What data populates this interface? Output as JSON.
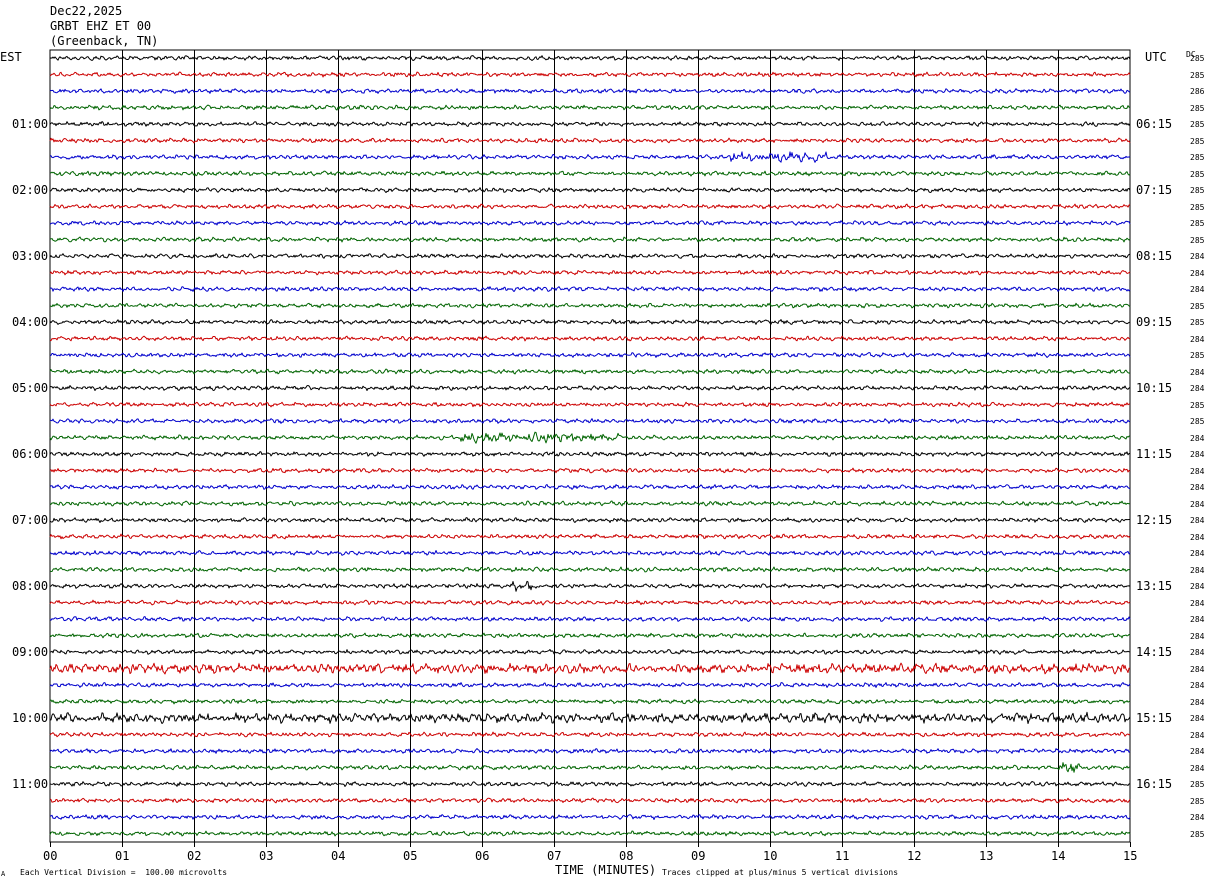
{
  "header": {
    "date": "Dec22,2025",
    "station": "GRBT EHZ ET 00",
    "location": "(Greenback, TN)"
  },
  "left_axis_title": "EST",
  "right_axis_title": "UTC",
  "dc_title": "DC",
  "footer": {
    "corner_mark": "A",
    "scale_note": "Each Vertical Division =  100.00 microvolts",
    "xlabel": "TIME (MINUTES)",
    "clip_note": "Traces clipped at plus/minus 5 vertical divisions"
  },
  "colors": {
    "trace_cycle": [
      "#000000",
      "#cc0000",
      "#0000cc",
      "#006400"
    ],
    "grid": "#000000"
  },
  "chart_data": {
    "type": "line",
    "title": "",
    "xlabel": "TIME (MINUTES)",
    "ylabel": "",
    "xlim": [
      0,
      15
    ],
    "x_ticks": [
      "00",
      "01",
      "02",
      "03",
      "04",
      "05",
      "06",
      "07",
      "08",
      "09",
      "10",
      "11",
      "12",
      "13",
      "14",
      "15"
    ],
    "trace_count": 48,
    "est_hour_labels": [
      "01:00",
      "02:00",
      "03:00",
      "04:00",
      "05:00",
      "06:00",
      "07:00",
      "08:00",
      "09:00",
      "10:00",
      "11:00"
    ],
    "utc_hour_labels": [
      "06:15",
      "07:15",
      "08:15",
      "09:15",
      "10:15",
      "11:15",
      "12:15",
      "13:15",
      "14:15",
      "15:15",
      "16:15"
    ],
    "dc_offsets": [
      285,
      285,
      286,
      285,
      285,
      285,
      285,
      285,
      285,
      285,
      285,
      285,
      284,
      284,
      284,
      285,
      285,
      284,
      285,
      284,
      284,
      285,
      285,
      284,
      284,
      284,
      284,
      284,
      284,
      284,
      284,
      284,
      284,
      284,
      284,
      284,
      284,
      284,
      284,
      284,
      284,
      284,
      284,
      284,
      285,
      285,
      284,
      285
    ],
    "bursts": [
      {
        "trace": 6,
        "x_start": 9.4,
        "x_end": 10.8
      },
      {
        "trace": 23,
        "x_start": 5.7,
        "x_end": 7.9
      },
      {
        "trace": 32,
        "x_start": 6.4,
        "x_end": 6.7
      },
      {
        "trace": 37,
        "x_start": 0.0,
        "x_end": 15.0
      },
      {
        "trace": 40,
        "x_start": 0.0,
        "x_end": 15.0
      },
      {
        "trace": 43,
        "x_start": 14.0,
        "x_end": 14.3
      }
    ]
  }
}
